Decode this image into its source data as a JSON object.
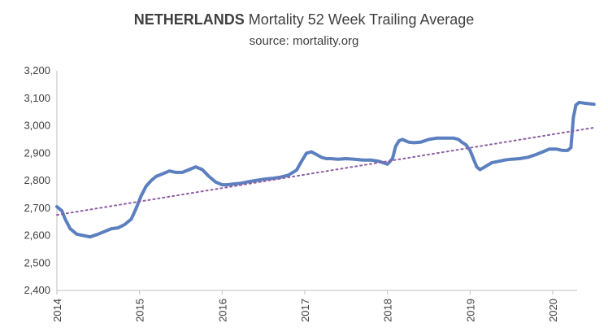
{
  "chart_data": {
    "type": "line",
    "title_bold": "NETHERLANDS",
    "title_rest": "Mortality 52 Week Trailing Average",
    "subtitle": "source: mortality.org",
    "xlabel": "",
    "ylabel": "",
    "ylim": [
      2400,
      3200
    ],
    "xlim": [
      2014.0,
      2020.5
    ],
    "y_ticks": [
      2400,
      2500,
      2600,
      2700,
      2800,
      2900,
      3000,
      3100,
      3200
    ],
    "y_tick_labels": [
      "2,400",
      "2,500",
      "2,600",
      "2,700",
      "2,800",
      "2,900",
      "3,000",
      "3,100",
      "3,200"
    ],
    "x_ticks": [
      2014,
      2015,
      2016,
      2017,
      2018,
      2019,
      2020
    ],
    "x_tick_labels": [
      "2014",
      "2015",
      "2016",
      "2017",
      "2018",
      "2019",
      "2020"
    ],
    "grid": false,
    "legend": "none",
    "series": [
      {
        "color": "#5b7fbf",
        "style": "solid",
        "x": [
          2014.0,
          2014.06,
          2014.1,
          2014.16,
          2014.24,
          2014.32,
          2014.4,
          2014.5,
          2014.58,
          2014.66,
          2014.74,
          2014.82,
          2014.9,
          2014.96,
          2015.02,
          2015.08,
          2015.14,
          2015.2,
          2015.28,
          2015.36,
          2015.44,
          2015.52,
          2015.6,
          2015.68,
          2015.76,
          2015.84,
          2015.92,
          2016.0,
          2016.06,
          2016.14,
          2016.22,
          2016.3,
          2016.4,
          2016.5,
          2016.6,
          2016.7,
          2016.8,
          2016.9,
          2016.96,
          2017.02,
          2017.08,
          2017.14,
          2017.2,
          2017.26,
          2017.32,
          2017.4,
          2017.5,
          2017.6,
          2017.7,
          2017.8,
          2017.9,
          2018.0,
          2018.06,
          2018.1,
          2018.14,
          2018.18,
          2018.22,
          2018.26,
          2018.32,
          2018.4,
          2018.5,
          2018.6,
          2018.7,
          2018.8,
          2018.86,
          2018.9,
          2018.95,
          2019.0,
          2019.04,
          2019.08,
          2019.12,
          2019.18,
          2019.26,
          2019.34,
          2019.42,
          2019.5,
          2019.6,
          2019.7,
          2019.8,
          2019.88,
          2019.96,
          2020.04,
          2020.12,
          2020.18,
          2020.22,
          2020.25,
          2020.28,
          2020.32,
          2020.38,
          2020.44,
          2020.5
        ],
        "values": [
          2705,
          2690,
          2660,
          2625,
          2605,
          2600,
          2595,
          2605,
          2615,
          2625,
          2628,
          2640,
          2660,
          2700,
          2745,
          2780,
          2800,
          2815,
          2825,
          2835,
          2830,
          2830,
          2840,
          2850,
          2840,
          2815,
          2795,
          2785,
          2785,
          2788,
          2790,
          2795,
          2800,
          2805,
          2808,
          2812,
          2820,
          2838,
          2870,
          2900,
          2905,
          2895,
          2885,
          2880,
          2880,
          2878,
          2880,
          2878,
          2875,
          2875,
          2870,
          2860,
          2880,
          2925,
          2945,
          2950,
          2945,
          2940,
          2938,
          2940,
          2950,
          2955,
          2955,
          2955,
          2950,
          2940,
          2930,
          2910,
          2880,
          2850,
          2840,
          2850,
          2865,
          2870,
          2875,
          2878,
          2880,
          2885,
          2895,
          2905,
          2915,
          2915,
          2910,
          2910,
          2920,
          3030,
          3075,
          3085,
          3082,
          3080,
          3078
        ]
      },
      {
        "color": "#8e5ea2",
        "style": "dotted",
        "x": [
          2014.0,
          2020.5
        ],
        "values": [
          2675,
          2993
        ]
      }
    ]
  }
}
